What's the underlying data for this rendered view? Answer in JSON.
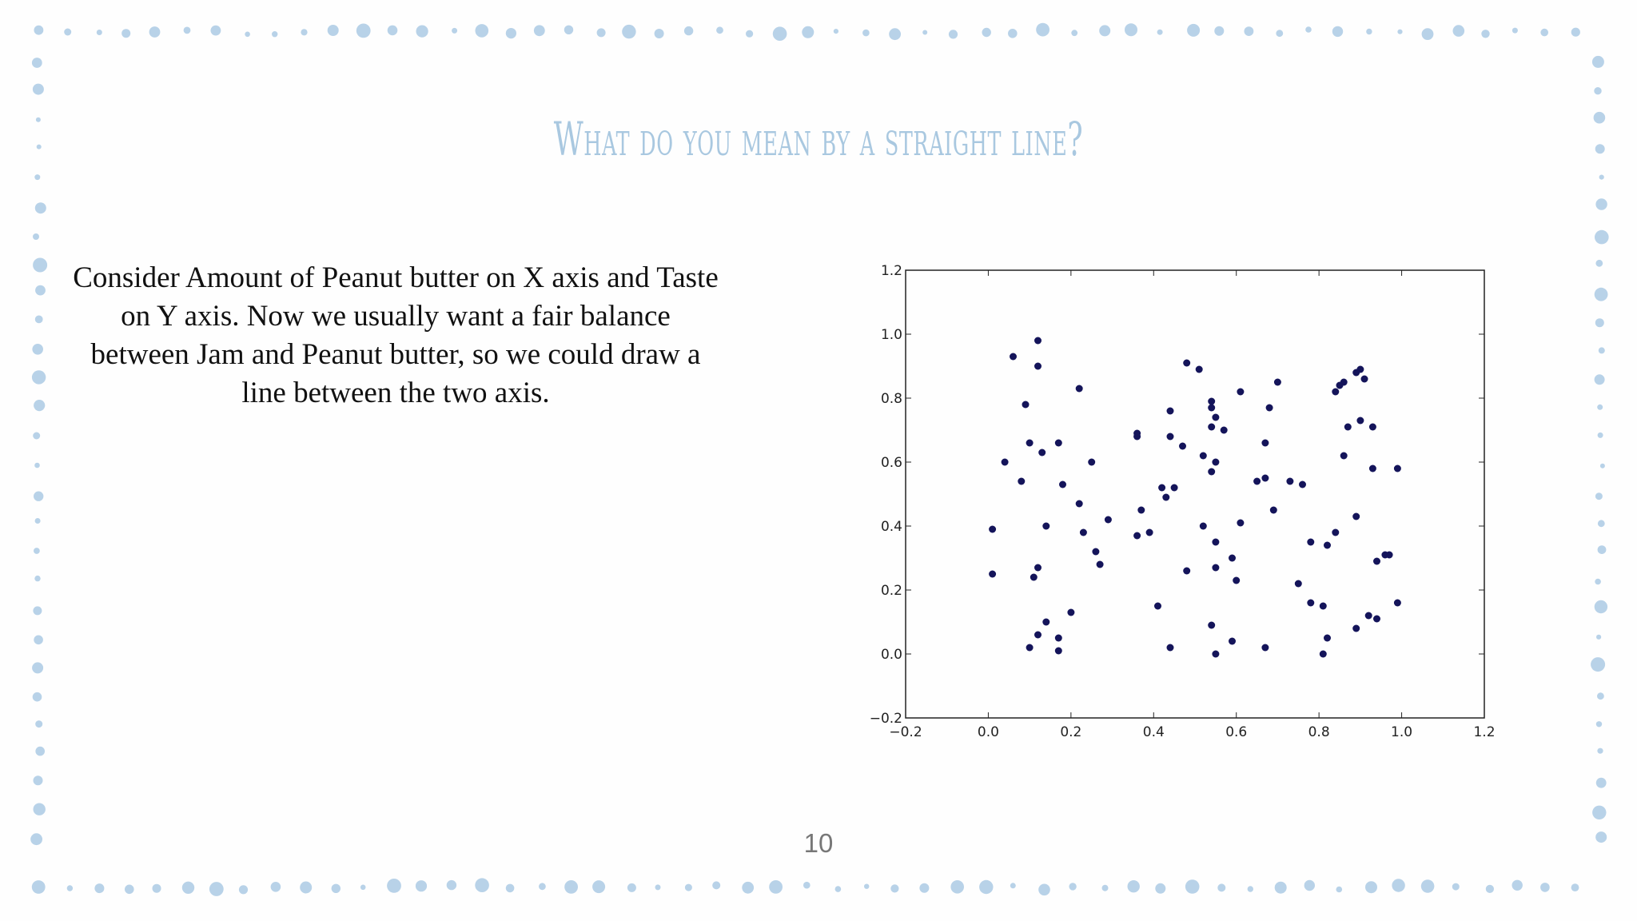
{
  "slide": {
    "title": "What do you mean by a straight line?",
    "body": "Consider Amount of Peanut butter on X axis and Taste on Y axis. Now we usually want a fair balance between Jam and Peanut butter, so we could draw a line between the two axis.",
    "page_number": "10"
  },
  "colors": {
    "background": "#fefefe",
    "border_dots": "#b8d2e8",
    "title": "#a9c8e0",
    "points": "#14145a"
  },
  "chart_data": {
    "type": "scatter",
    "title": "",
    "xlabel": "",
    "ylabel": "",
    "xlim": [
      -0.2,
      1.2
    ],
    "ylim": [
      -0.2,
      1.2
    ],
    "xticks": [
      "−0.2",
      "0.0",
      "0.2",
      "0.4",
      "0.6",
      "0.8",
      "1.0",
      "1.2"
    ],
    "yticks": [
      "−0.2",
      "0.0",
      "0.2",
      "0.4",
      "0.6",
      "0.8",
      "1.0",
      "1.2"
    ],
    "grid": false,
    "points": [
      [
        0.12,
        0.98
      ],
      [
        0.06,
        0.93
      ],
      [
        0.12,
        0.9
      ],
      [
        0.09,
        0.78
      ],
      [
        0.22,
        0.83
      ],
      [
        0.1,
        0.66
      ],
      [
        0.13,
        0.63
      ],
      [
        0.17,
        0.66
      ],
      [
        0.04,
        0.6
      ],
      [
        0.25,
        0.6
      ],
      [
        0.08,
        0.54
      ],
      [
        0.18,
        0.53
      ],
      [
        0.22,
        0.47
      ],
      [
        0.29,
        0.42
      ],
      [
        0.01,
        0.39
      ],
      [
        0.14,
        0.4
      ],
      [
        0.23,
        0.38
      ],
      [
        0.26,
        0.32
      ],
      [
        0.27,
        0.28
      ],
      [
        0.01,
        0.25
      ],
      [
        0.11,
        0.24
      ],
      [
        0.12,
        0.27
      ],
      [
        0.2,
        0.13
      ],
      [
        0.14,
        0.1
      ],
      [
        0.12,
        0.06
      ],
      [
        0.17,
        0.05
      ],
      [
        0.1,
        0.02
      ],
      [
        0.17,
        0.01
      ],
      [
        0.36,
        0.69
      ],
      [
        0.36,
        0.68
      ],
      [
        0.48,
        0.91
      ],
      [
        0.51,
        0.89
      ],
      [
        0.44,
        0.76
      ],
      [
        0.54,
        0.79
      ],
      [
        0.54,
        0.77
      ],
      [
        0.55,
        0.74
      ],
      [
        0.54,
        0.71
      ],
      [
        0.57,
        0.7
      ],
      [
        0.61,
        0.82
      ],
      [
        0.44,
        0.68
      ],
      [
        0.47,
        0.65
      ],
      [
        0.52,
        0.62
      ],
      [
        0.55,
        0.6
      ],
      [
        0.54,
        0.57
      ],
      [
        0.42,
        0.52
      ],
      [
        0.45,
        0.52
      ],
      [
        0.43,
        0.49
      ],
      [
        0.37,
        0.45
      ],
      [
        0.36,
        0.37
      ],
      [
        0.39,
        0.38
      ],
      [
        0.52,
        0.4
      ],
      [
        0.61,
        0.41
      ],
      [
        0.55,
        0.35
      ],
      [
        0.59,
        0.3
      ],
      [
        0.48,
        0.26
      ],
      [
        0.55,
        0.27
      ],
      [
        0.6,
        0.23
      ],
      [
        0.41,
        0.15
      ],
      [
        0.54,
        0.09
      ],
      [
        0.59,
        0.04
      ],
      [
        0.44,
        0.02
      ],
      [
        0.55,
        0.0
      ],
      [
        0.7,
        0.85
      ],
      [
        0.68,
        0.77
      ],
      [
        0.67,
        0.66
      ],
      [
        0.65,
        0.54
      ],
      [
        0.67,
        0.55
      ],
      [
        0.73,
        0.54
      ],
      [
        0.76,
        0.53
      ],
      [
        0.69,
        0.45
      ],
      [
        0.67,
        0.02
      ],
      [
        0.89,
        0.88
      ],
      [
        0.9,
        0.89
      ],
      [
        0.91,
        0.86
      ],
      [
        0.86,
        0.85
      ],
      [
        0.85,
        0.84
      ],
      [
        0.84,
        0.82
      ],
      [
        0.9,
        0.73
      ],
      [
        0.87,
        0.71
      ],
      [
        0.93,
        0.71
      ],
      [
        0.86,
        0.62
      ],
      [
        0.93,
        0.58
      ],
      [
        0.99,
        0.58
      ],
      [
        0.89,
        0.43
      ],
      [
        0.84,
        0.38
      ],
      [
        0.78,
        0.35
      ],
      [
        0.82,
        0.34
      ],
      [
        0.94,
        0.29
      ],
      [
        0.96,
        0.31
      ],
      [
        0.97,
        0.31
      ],
      [
        0.75,
        0.22
      ],
      [
        0.78,
        0.16
      ],
      [
        0.81,
        0.15
      ],
      [
        0.99,
        0.16
      ],
      [
        0.92,
        0.12
      ],
      [
        0.94,
        0.11
      ],
      [
        0.89,
        0.08
      ],
      [
        0.82,
        0.05
      ],
      [
        0.81,
        0.0
      ]
    ]
  }
}
